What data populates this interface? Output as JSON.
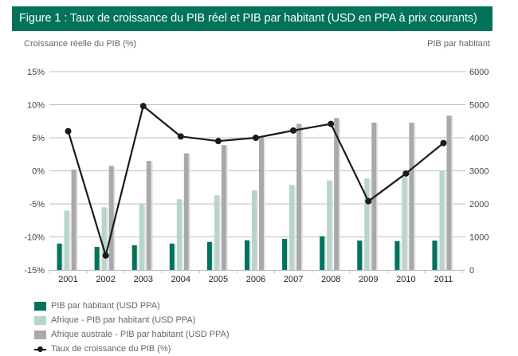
{
  "header": {
    "title": "Figure 1 : Taux de croissance du PIB réel et PIB par habitant (USD en PPA à prix courants)"
  },
  "colors": {
    "header_bg": "#00735a",
    "pib_habitant": "#00735a",
    "afrique": "#b7d5c9",
    "afrique_australe": "#a9a9ad",
    "croissance_line": "#1a1a1a",
    "gridline": "#bdbdbd"
  },
  "chart_data": {
    "type": "bar",
    "title": "Figure 1 : Taux de croissance du PIB réel et PIB par habitant (USD en PPA à prix courants)",
    "xlabel": "",
    "ylabel": "Croissance réelle du PIB (%)",
    "y2label": "PIB par habitant",
    "categories": [
      "2001",
      "2002",
      "2003",
      "2004",
      "2005",
      "2006",
      "2007",
      "2008",
      "2009",
      "2010",
      "2011"
    ],
    "ylim": [
      -15,
      15
    ],
    "y_ticks": [
      "15%",
      "10%",
      "5%",
      "0%",
      "-5%",
      "-10%",
      "-15%"
    ],
    "y_tick_values": [
      15,
      10,
      5,
      0,
      -5,
      -10,
      -15
    ],
    "y2lim": [
      0,
      6000
    ],
    "y2_ticks": [
      "6000",
      "5000",
      "4000",
      "3000",
      "2000",
      "1000",
      "0"
    ],
    "y2_tick_values": [
      6000,
      5000,
      4000,
      3000,
      2000,
      1000,
      0
    ],
    "grid": true,
    "legend_position": "bottom-left",
    "series": [
      {
        "name": "PIB par habitant (USD PPA)",
        "type": "bar",
        "axis": "right",
        "color_key": "pib_habitant",
        "values": [
          800,
          700,
          750,
          800,
          850,
          900,
          940,
          1020,
          890,
          875,
          890
        ]
      },
      {
        "name": "Afrique - PIB par habitant (USD PPA)",
        "type": "bar",
        "axis": "right",
        "color_key": "afrique",
        "values": [
          1800,
          1900,
          2000,
          2140,
          2260,
          2410,
          2580,
          2710,
          2770,
          2830,
          3010
        ]
      },
      {
        "name": "Afrique australe - PIB par habitant (USD PPA)",
        "type": "bar",
        "axis": "right",
        "color_key": "afrique_australe",
        "values": [
          3040,
          3150,
          3300,
          3530,
          3780,
          4030,
          4420,
          4600,
          4460,
          4460,
          4670
        ]
      },
      {
        "name": "Taux de croissance du PIB (%)",
        "type": "line",
        "axis": "left",
        "color_key": "croissance_line",
        "values": [
          6.0,
          -12.8,
          9.8,
          5.2,
          4.5,
          5.0,
          6.1,
          7.1,
          -4.6,
          -0.4,
          4.2
        ]
      }
    ]
  }
}
